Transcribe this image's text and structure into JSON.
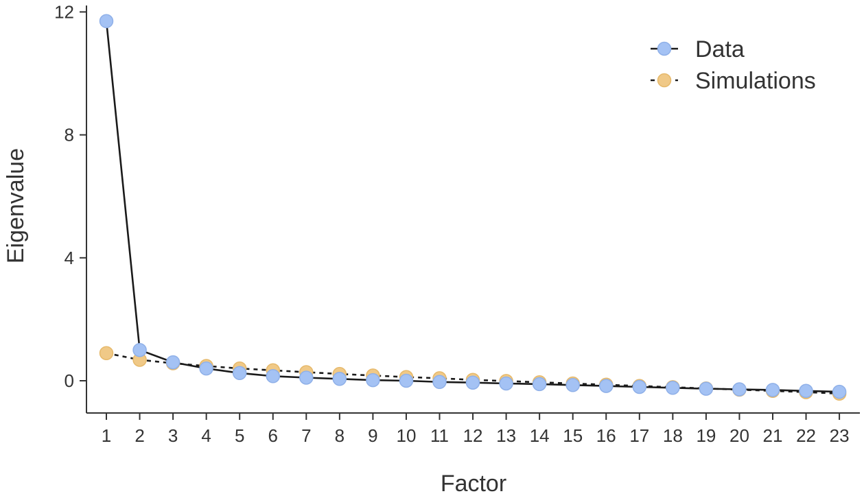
{
  "chart_data": {
    "type": "line",
    "xlabel": "Factor",
    "ylabel": "Eigenvalue",
    "x": [
      1,
      2,
      3,
      4,
      5,
      6,
      7,
      8,
      9,
      10,
      11,
      12,
      13,
      14,
      15,
      16,
      17,
      18,
      19,
      20,
      21,
      22,
      23
    ],
    "xlim": [
      0.5,
      23.5
    ],
    "ylim": [
      -1.0,
      12.4
    ],
    "yticks": [
      0,
      4,
      8,
      12
    ],
    "grid": false,
    "legend_position": "top-right",
    "series": [
      {
        "name": "Data",
        "color": "#a4c2f4",
        "edge_color": "#8fb0e8",
        "line_style": "solid",
        "values": [
          11.7,
          1.0,
          0.6,
          0.4,
          0.25,
          0.15,
          0.1,
          0.06,
          0.02,
          0.0,
          -0.04,
          -0.06,
          -0.09,
          -0.11,
          -0.14,
          -0.17,
          -0.2,
          -0.23,
          -0.26,
          -0.28,
          -0.3,
          -0.33,
          -0.36
        ]
      },
      {
        "name": "Simulations",
        "color": "#f0c987",
        "edge_color": "#e6b96b",
        "line_style": "dashed",
        "values": [
          0.9,
          0.68,
          0.57,
          0.48,
          0.4,
          0.34,
          0.28,
          0.22,
          0.17,
          0.12,
          0.08,
          0.03,
          -0.01,
          -0.05,
          -0.09,
          -0.13,
          -0.17,
          -0.21,
          -0.25,
          -0.29,
          -0.33,
          -0.37,
          -0.42
        ]
      }
    ]
  }
}
